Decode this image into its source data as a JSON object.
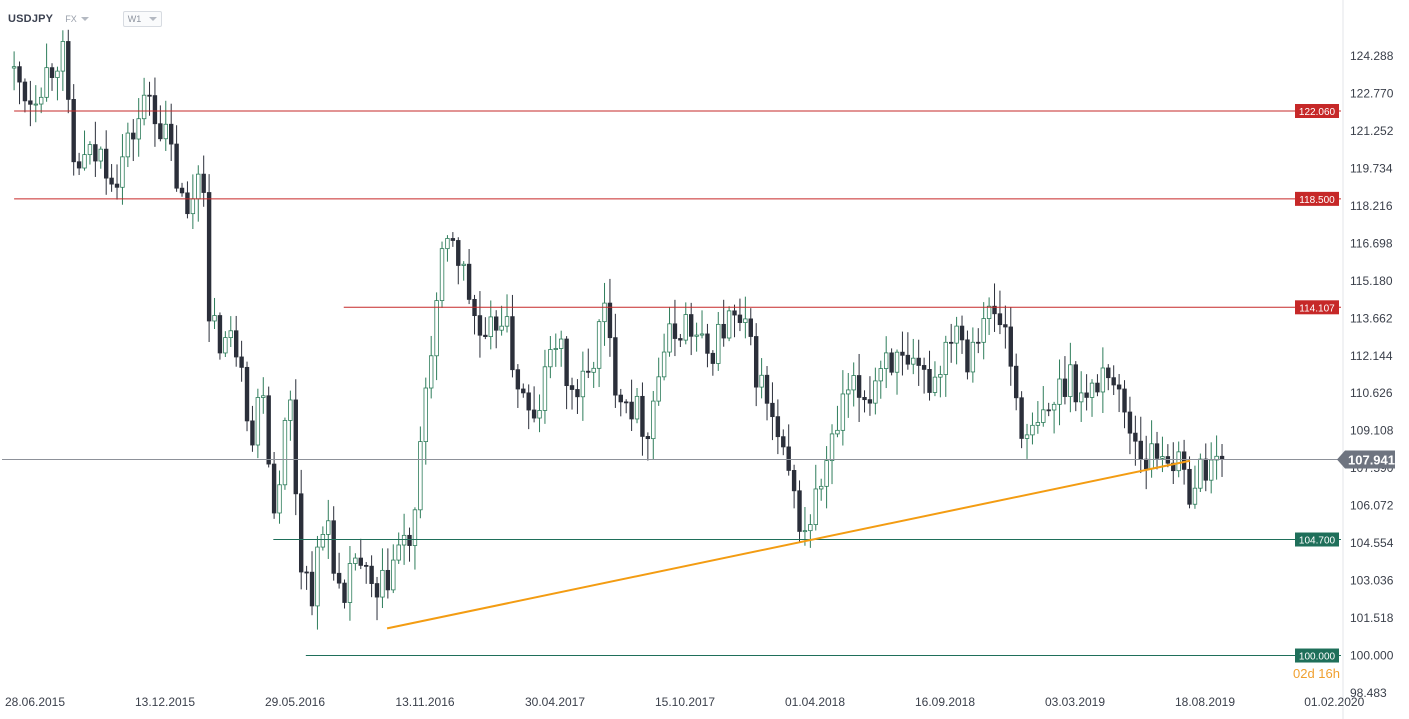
{
  "header": {
    "symbol": "USDJPY",
    "market": "FX",
    "timeframe": "W1"
  },
  "countdown": {
    "days": "02",
    "days_unit": "d",
    "hours": "16",
    "hours_unit": "h"
  },
  "colors": {
    "bull": "#2e7d5b",
    "bear": "#2b2f3a",
    "resistance": "#c62828",
    "support": "#1f6f5a",
    "trendline": "#f39c12",
    "price_line": "#8d9199",
    "price_label_bg": "#6e7480",
    "axis_text": "#3a3f4a"
  },
  "chart_data": {
    "type": "candlestick",
    "title": "",
    "xlabel": "",
    "ylabel": "",
    "ylim": [
      98.483,
      125.8
    ],
    "y_ticks": [
      "124.288",
      "122.770",
      "121.252",
      "119.734",
      "118.216",
      "116.698",
      "115.180",
      "113.662",
      "112.144",
      "110.626",
      "109.108",
      "107.590",
      "106.072",
      "104.554",
      "103.036",
      "101.518",
      "100.000",
      "98.483"
    ],
    "x_ticks": [
      "28.06.2015",
      "13.12.2015",
      "29.05.2016",
      "13.11.2016",
      "30.04.2017",
      "15.10.2017",
      "01.04.2018",
      "16.09.2018",
      "03.03.2019",
      "18.08.2019",
      "01.02.2020"
    ],
    "x_range": [
      "2015-06-01",
      "2020-02-20"
    ],
    "current_price": "107.941",
    "horizontal_levels": [
      {
        "value": 122.06,
        "label": "122.060",
        "type": "resistance",
        "start": "2015-06-01"
      },
      {
        "value": 118.5,
        "label": "118.500",
        "type": "resistance",
        "start": "2015-06-01"
      },
      {
        "value": 114.107,
        "label": "114.107",
        "type": "resistance",
        "start": "2016-07-31"
      },
      {
        "value": 104.7,
        "label": "104.700",
        "type": "support",
        "start": "2016-05-01"
      },
      {
        "value": 100.0,
        "label": "100.000",
        "type": "support",
        "start": "2016-06-12"
      }
    ],
    "trendline": {
      "start": {
        "date": "2016-09-25",
        "value": 101.1
      },
      "end": {
        "date": "2019-09-15",
        "value": 108.2
      }
    },
    "anchors": [
      [
        "2015-06-01",
        123.8
      ],
      [
        "2015-06-28",
        122.6
      ],
      [
        "2015-08-09",
        124.6
      ],
      [
        "2015-08-23",
        119.8
      ],
      [
        "2015-09-27",
        120.3
      ],
      [
        "2015-10-18",
        119.5
      ],
      [
        "2015-11-01",
        120.6
      ],
      [
        "2015-11-29",
        122.8
      ],
      [
        "2015-12-27",
        120.4
      ],
      [
        "2016-01-17",
        117.5
      ],
      [
        "2016-02-07",
        120.6
      ],
      [
        "2016-02-14",
        113.2
      ],
      [
        "2016-03-06",
        112.8
      ],
      [
        "2016-03-27",
        112.6
      ],
      [
        "2016-04-10",
        108.4
      ],
      [
        "2016-04-24",
        111.6
      ],
      [
        "2016-05-08",
        105.7
      ],
      [
        "2016-05-29",
        110.6
      ],
      [
        "2016-06-12",
        104.0
      ],
      [
        "2016-06-26",
        102.6
      ],
      [
        "2016-07-17",
        105.7
      ],
      [
        "2016-08-07",
        101.3
      ],
      [
        "2016-08-21",
        104.2
      ],
      [
        "2016-09-18",
        102.0
      ],
      [
        "2016-10-16",
        104.3
      ],
      [
        "2016-11-06",
        104.8
      ],
      [
        "2016-11-20",
        110.7
      ],
      [
        "2016-12-11",
        115.6
      ],
      [
        "2016-12-25",
        117.1
      ],
      [
        "2017-01-15",
        114.7
      ],
      [
        "2017-02-05",
        112.2
      ],
      [
        "2017-02-26",
        114.1
      ],
      [
        "2017-03-19",
        111.2
      ],
      [
        "2017-04-09",
        109.1
      ],
      [
        "2017-05-07",
        113.0
      ],
      [
        "2017-05-28",
        110.6
      ],
      [
        "2017-06-18",
        111.0
      ],
      [
        "2017-07-09",
        114.0
      ],
      [
        "2017-07-23",
        111.3
      ],
      [
        "2017-09-03",
        109.2
      ],
      [
        "2017-09-24",
        112.4
      ],
      [
        "2017-10-22",
        113.6
      ],
      [
        "2017-11-19",
        112.1
      ],
      [
        "2017-12-17",
        113.6
      ],
      [
        "2018-01-07",
        113.1
      ],
      [
        "2018-02-04",
        110.3
      ],
      [
        "2018-03-11",
        106.4
      ],
      [
        "2018-03-25",
        104.8
      ],
      [
        "2018-04-22",
        107.6
      ],
      [
        "2018-05-20",
        110.6
      ],
      [
        "2018-06-17",
        110.6
      ],
      [
        "2018-07-08",
        112.4
      ],
      [
        "2018-08-05",
        111.3
      ],
      [
        "2018-08-26",
        111.2
      ],
      [
        "2018-09-09",
        111.2
      ],
      [
        "2018-10-07",
        113.8
      ],
      [
        "2018-10-21",
        112.2
      ],
      [
        "2018-11-11",
        113.9
      ],
      [
        "2018-12-09",
        113.4
      ],
      [
        "2018-12-23",
        110.6
      ],
      [
        "2019-01-06",
        108.5
      ],
      [
        "2019-02-03",
        109.8
      ],
      [
        "2019-03-03",
        111.6
      ],
      [
        "2019-03-24",
        110.2
      ],
      [
        "2019-04-21",
        111.9
      ],
      [
        "2019-05-12",
        109.8
      ],
      [
        "2019-06-09",
        108.0
      ],
      [
        "2019-07-07",
        108.4
      ],
      [
        "2019-08-04",
        106.8
      ],
      [
        "2019-08-25",
        107.7
      ],
      [
        "2019-09-15",
        107.94
      ]
    ]
  }
}
